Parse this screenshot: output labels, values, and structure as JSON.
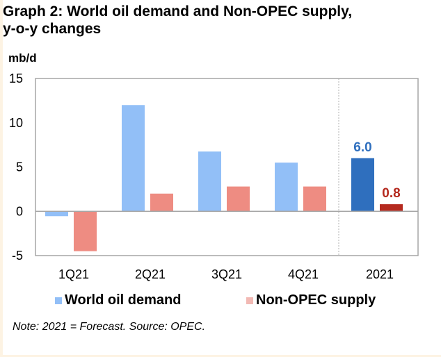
{
  "header": {
    "title_line1": "Graph 2: World oil demand and Non-OPEC supply,",
    "title_line2": "y-o-y changes",
    "unit": "mb/d"
  },
  "note": "Note: 2021 = Forecast. Source: OPEC.",
  "colors": {
    "demand": "#92bff7",
    "supply": "#ee8c82",
    "demand_forecast": "#2f6fbe",
    "supply_forecast": "#b52a1f",
    "axis": "#a6a6a6",
    "legend_demand": "#92bff7",
    "legend_supply": "#f2b9b4"
  },
  "chart_data": {
    "type": "bar",
    "title": "Graph 2: World oil demand and Non-OPEC supply, y-o-y changes",
    "xlabel": "",
    "ylabel": "mb/d",
    "categories": [
      "1Q21",
      "2Q21",
      "3Q21",
      "4Q21",
      "2021"
    ],
    "series": [
      {
        "name": "World oil demand",
        "values": [
          -0.55,
          12.0,
          6.75,
          5.5,
          6.0
        ]
      },
      {
        "name": "Non-OPEC supply",
        "values": [
          -4.5,
          2.0,
          2.8,
          2.8,
          0.8
        ]
      }
    ],
    "data_labels": [
      {
        "category": "2021",
        "series": "World oil demand",
        "text": "6.0"
      },
      {
        "category": "2021",
        "series": "Non-OPEC supply",
        "text": "0.8"
      }
    ],
    "ylim": [
      -5,
      15
    ],
    "yticks": [
      "15",
      "10",
      "5",
      "0",
      "-5"
    ],
    "ytick_values": [
      15,
      10,
      5,
      0,
      -5
    ],
    "grid": false,
    "separator_before": "2021",
    "legend": [
      "World oil demand",
      "Non-OPEC supply"
    ],
    "legend_position": "bottom"
  }
}
